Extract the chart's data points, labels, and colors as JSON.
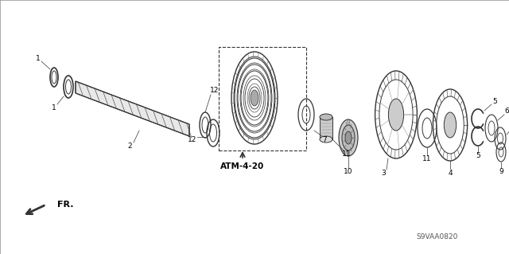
{
  "bg_color": "#ffffff",
  "line_color": "#333333",
  "label_color": "#000000",
  "atm_label": "ATM-4-20",
  "diagram_code": "S9VAA0820",
  "fr_label": "FR.",
  "figsize": [
    6.4,
    3.19
  ],
  "dpi": 100
}
